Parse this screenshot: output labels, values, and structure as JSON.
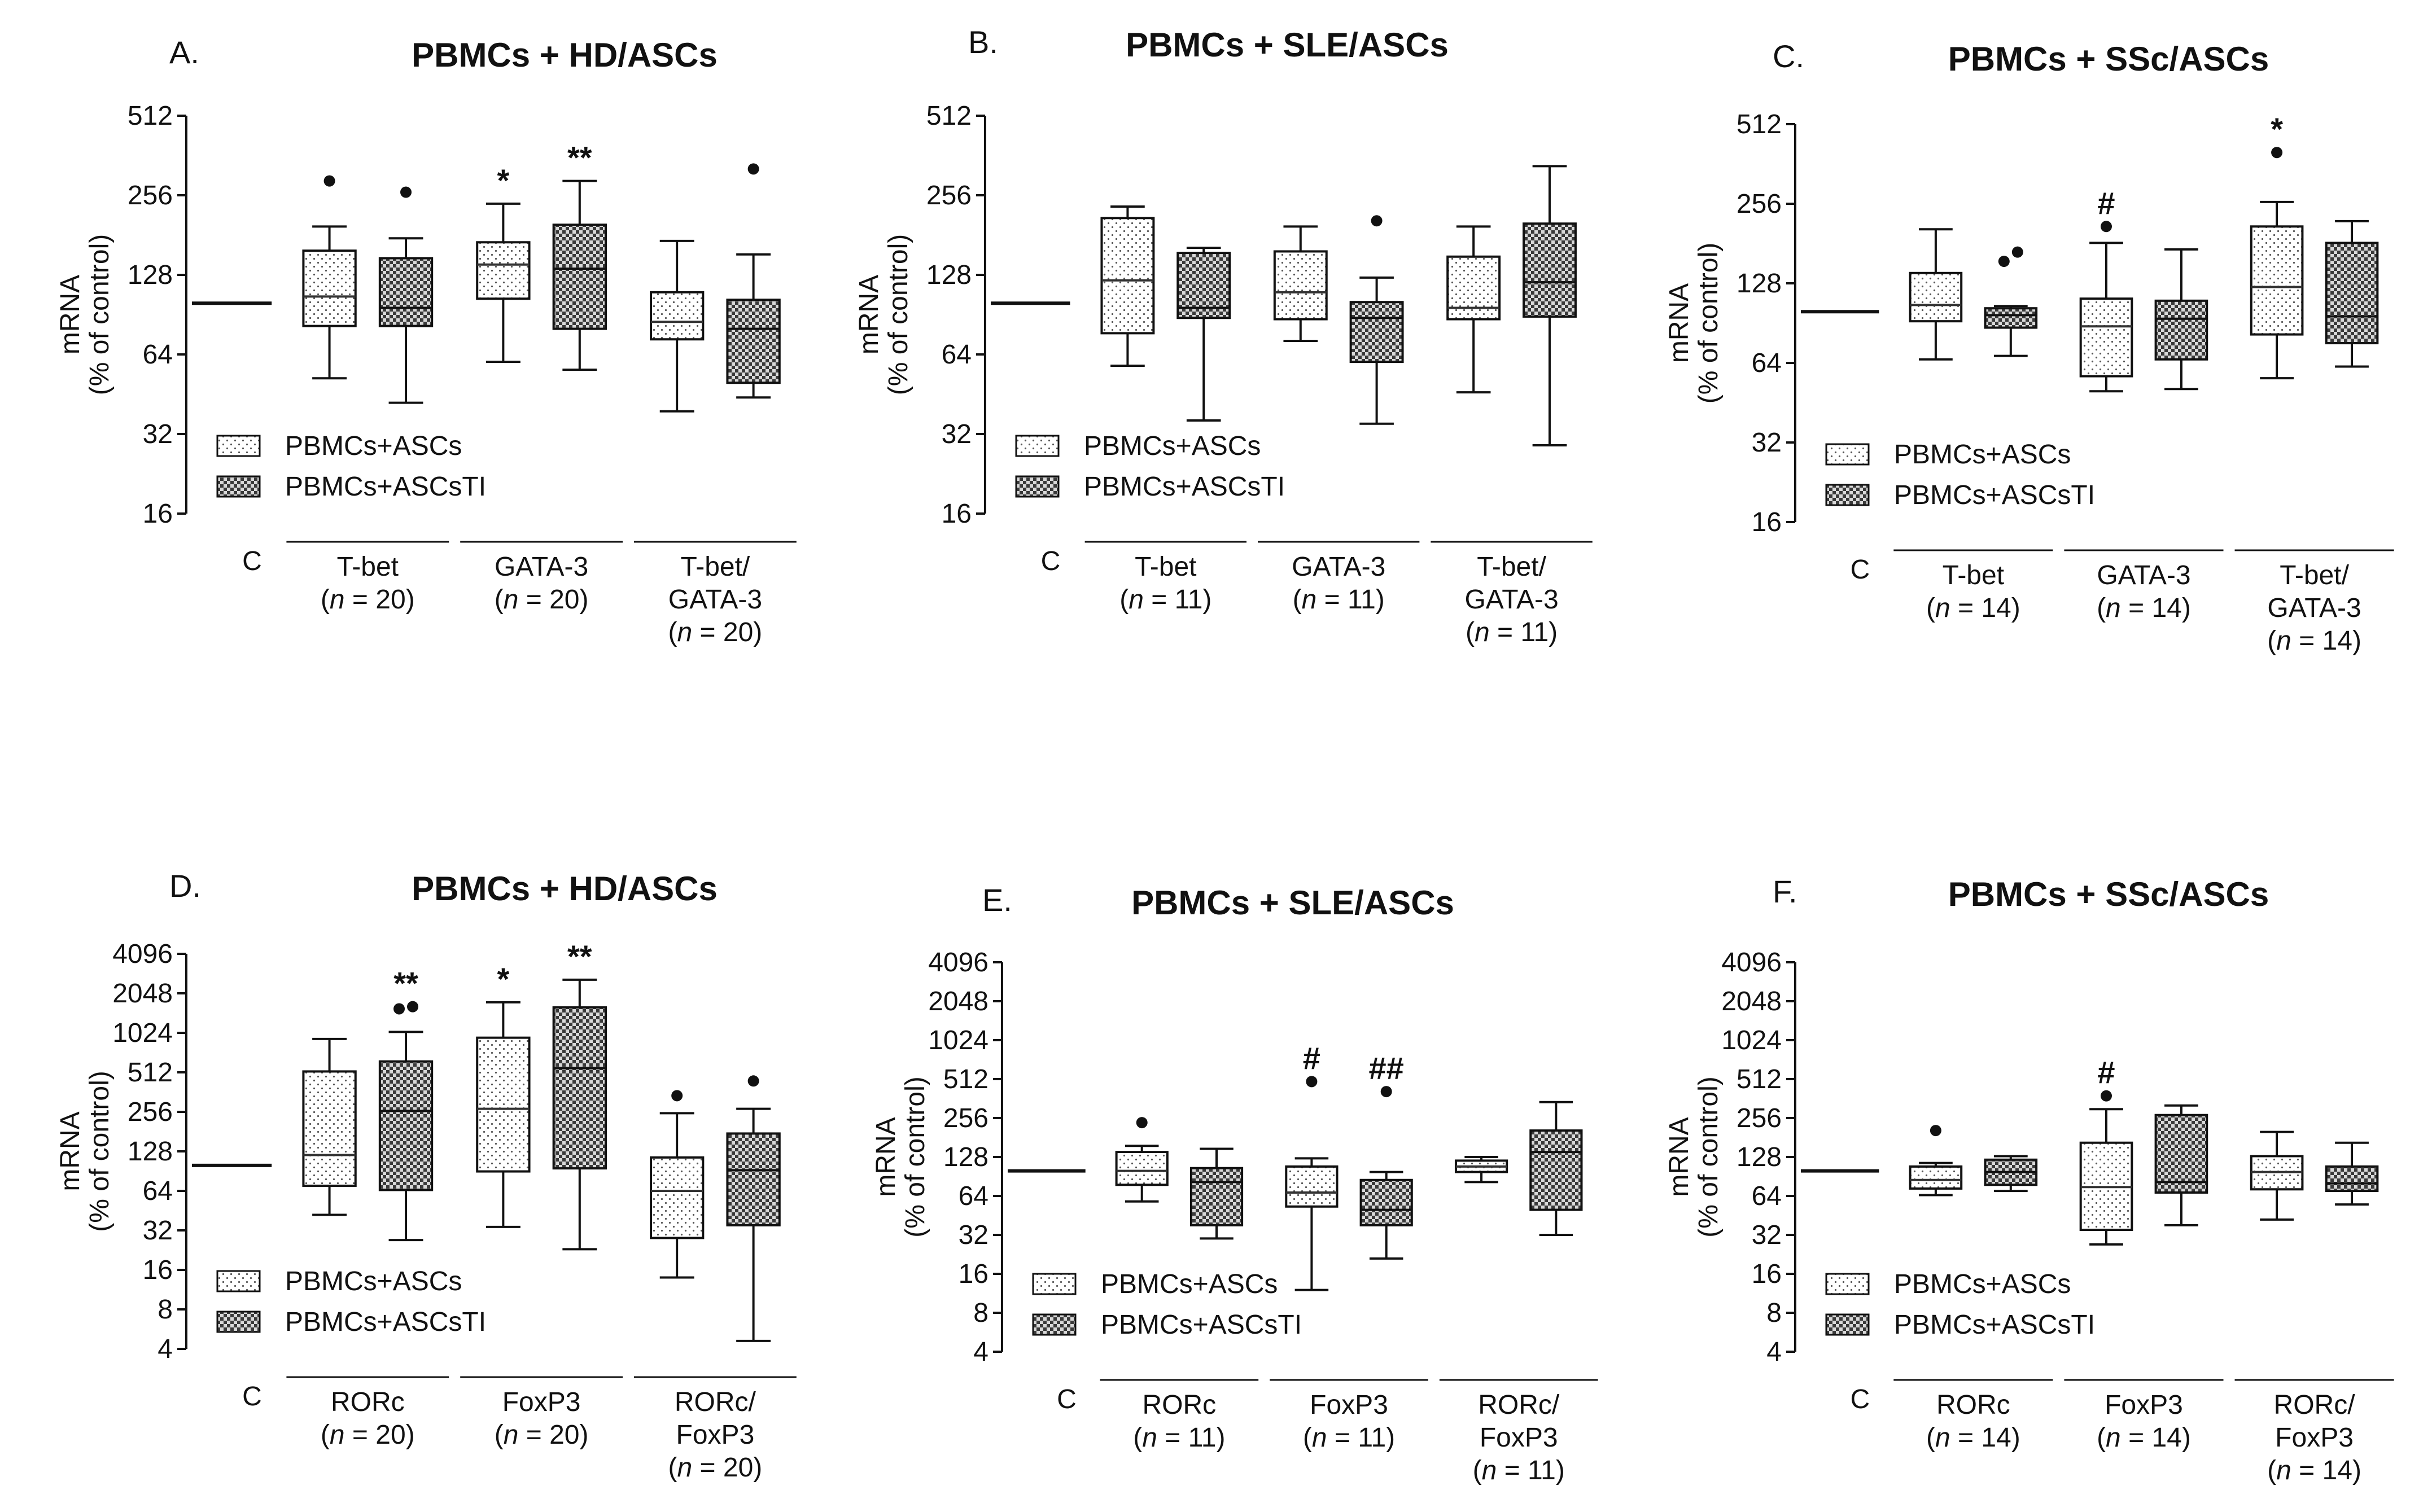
{
  "chart_data": [
    {
      "type": "box",
      "panel_label": "A.",
      "title": "PBMCs + HD/ASCs",
      "ylabel": [
        "mRNA",
        "(% of control)"
      ],
      "yscale": "log2",
      "ylim": [
        16,
        512
      ],
      "yticks": [
        "16",
        "32",
        "64",
        "128",
        "256",
        "512"
      ],
      "control": {
        "label": "C",
        "value": 100
      },
      "legend": {
        "position": "bottom-left",
        "entries": [
          "PBMCs+ASCs",
          "PBMCs+ASCsTI"
        ]
      },
      "groups": [
        {
          "label": [
            "T-bet",
            "(n = 20)"
          ]
        },
        {
          "label": [
            "GATA-3",
            "(n = 20)"
          ]
        },
        {
          "label": [
            "T-bet/",
            "GATA-3",
            "(n = 20)"
          ]
        }
      ],
      "boxes": [
        {
          "group": 0,
          "series": "PBMCs+ASCs",
          "whisker_low": 52,
          "q1": 82,
          "median": 106,
          "q3": 158,
          "whisker_high": 195,
          "outliers": [
            290
          ],
          "annotation": ""
        },
        {
          "group": 0,
          "series": "PBMCs+ASCsTI",
          "whisker_low": 42,
          "q1": 82,
          "median": 96,
          "q3": 148,
          "whisker_high": 176,
          "outliers": [
            263
          ],
          "annotation": ""
        },
        {
          "group": 1,
          "series": "PBMCs+ASCs",
          "whisker_low": 60,
          "q1": 104,
          "median": 140,
          "q3": 170,
          "whisker_high": 238,
          "outliers": [],
          "annotation": "*"
        },
        {
          "group": 1,
          "series": "PBMCs+ASCsTI",
          "whisker_low": 56,
          "q1": 80,
          "median": 135,
          "q3": 198,
          "whisker_high": 290,
          "outliers": [],
          "annotation": "**"
        },
        {
          "group": 2,
          "series": "PBMCs+ASCs",
          "whisker_low": 39,
          "q1": 73,
          "median": 85,
          "q3": 110,
          "whisker_high": 172,
          "outliers": [],
          "annotation": ""
        },
        {
          "group": 2,
          "series": "PBMCs+ASCsTI",
          "whisker_low": 44,
          "q1": 50,
          "median": 80,
          "q3": 103,
          "whisker_high": 153,
          "outliers": [
            322
          ],
          "annotation": ""
        }
      ]
    },
    {
      "type": "box",
      "panel_label": "B.",
      "title": "PBMCs + SLE/ASCs",
      "ylabel": [
        "mRNA",
        "(% of control)"
      ],
      "yscale": "log2",
      "ylim": [
        16,
        512
      ],
      "yticks": [
        "16",
        "32",
        "64",
        "128",
        "256",
        "512"
      ],
      "control": {
        "label": "C",
        "value": 100
      },
      "legend": {
        "position": "bottom-left",
        "entries": [
          "PBMCs+ASCs",
          "PBMCs+ASCsTI"
        ]
      },
      "groups": [
        {
          "label": [
            "T-bet",
            "(n = 11)"
          ]
        },
        {
          "label": [
            "GATA-3",
            "(n = 11)"
          ]
        },
        {
          "label": [
            "T-bet/",
            "GATA-3",
            "(n = 11)"
          ]
        }
      ],
      "boxes": [
        {
          "group": 0,
          "series": "PBMCs+ASCs",
          "whisker_low": 58,
          "q1": 77,
          "median": 122,
          "q3": 210,
          "whisker_high": 232,
          "outliers": [],
          "annotation": ""
        },
        {
          "group": 0,
          "series": "PBMCs+ASCsTI",
          "whisker_low": 36,
          "q1": 88,
          "median": 96,
          "q3": 155,
          "whisker_high": 162,
          "outliers": [],
          "annotation": ""
        },
        {
          "group": 1,
          "series": "PBMCs+ASCs",
          "whisker_low": 72,
          "q1": 87,
          "median": 110,
          "q3": 157,
          "whisker_high": 195,
          "outliers": [],
          "annotation": ""
        },
        {
          "group": 1,
          "series": "PBMCs+ASCsTI",
          "whisker_low": 35,
          "q1": 60,
          "median": 88,
          "q3": 101,
          "whisker_high": 125,
          "outliers": [
            205
          ],
          "annotation": ""
        },
        {
          "group": 2,
          "series": "PBMCs+ASCs",
          "whisker_low": 46,
          "q1": 87,
          "median": 96,
          "q3": 150,
          "whisker_high": 195,
          "outliers": [],
          "annotation": ""
        },
        {
          "group": 2,
          "series": "PBMCs+ASCsTI",
          "whisker_low": 29,
          "q1": 89,
          "median": 120,
          "q3": 200,
          "whisker_high": 330,
          "outliers": [],
          "annotation": ""
        }
      ]
    },
    {
      "type": "box",
      "panel_label": "C.",
      "title": "PBMCs + SSc/ASCs",
      "ylabel": [
        "mRNA",
        "(% of control)"
      ],
      "yscale": "log2",
      "ylim": [
        16,
        512
      ],
      "yticks": [
        "16",
        "32",
        "64",
        "128",
        "256",
        "512"
      ],
      "control": {
        "label": "C",
        "value": 100
      },
      "legend": {
        "position": "bottom-left",
        "entries": [
          "PBMCs+ASCs",
          "PBMCs+ASCsTI"
        ]
      },
      "groups": [
        {
          "label": [
            "T-bet",
            "(n = 14)"
          ]
        },
        {
          "label": [
            "GATA-3",
            "(n = 14)"
          ]
        },
        {
          "label": [
            "T-bet/",
            "GATA-3",
            "(n = 14)"
          ]
        }
      ],
      "boxes": [
        {
          "group": 0,
          "series": "PBMCs+ASCs",
          "whisker_low": 66,
          "q1": 92,
          "median": 106,
          "q3": 140,
          "whisker_high": 205,
          "outliers": [],
          "annotation": ""
        },
        {
          "group": 0,
          "series": "PBMCs+ASCsTI",
          "whisker_low": 68,
          "q1": 87,
          "median": 97,
          "q3": 103,
          "whisker_high": 105,
          "outliers": [
            155,
            168
          ],
          "annotation": ""
        },
        {
          "group": 1,
          "series": "PBMCs+ASCs",
          "whisker_low": 50,
          "q1": 57,
          "median": 88,
          "q3": 112,
          "whisker_high": 182,
          "outliers": [
            210
          ],
          "annotation": "#"
        },
        {
          "group": 1,
          "series": "PBMCs+ASCsTI",
          "whisker_low": 51,
          "q1": 66,
          "median": 94,
          "q3": 110,
          "whisker_high": 172,
          "outliers": [],
          "annotation": ""
        },
        {
          "group": 2,
          "series": "PBMCs+ASCs",
          "whisker_low": 56,
          "q1": 82,
          "median": 124,
          "q3": 210,
          "whisker_high": 260,
          "outliers": [
            400
          ],
          "annotation": "*"
        },
        {
          "group": 2,
          "series": "PBMCs+ASCsTI",
          "whisker_low": 62,
          "q1": 76,
          "median": 96,
          "q3": 182,
          "whisker_high": 220,
          "outliers": [],
          "annotation": ""
        }
      ]
    },
    {
      "type": "box",
      "panel_label": "D.",
      "title": "PBMCs + HD/ASCs",
      "ylabel": [
        "mRNA",
        "(% of control)"
      ],
      "yscale": "log2",
      "ylim": [
        4,
        4096
      ],
      "yticks": [
        "4",
        "8",
        "16",
        "32",
        "64",
        "128",
        "256",
        "512",
        "1024",
        "2048",
        "4096"
      ],
      "control": {
        "label": "C",
        "value": 100
      },
      "legend": {
        "position": "bottom-left",
        "entries": [
          "PBMCs+ASCs",
          "PBMCs+ASCsTI"
        ]
      },
      "groups": [
        {
          "label": [
            "RORc",
            "(n = 20)"
          ]
        },
        {
          "label": [
            "FoxP3",
            "(n = 20)"
          ]
        },
        {
          "label": [
            "RORc/",
            "FoxP3",
            "(n = 20)"
          ]
        }
      ],
      "boxes": [
        {
          "group": 0,
          "series": "PBMCs+ASCs",
          "whisker_low": 42,
          "q1": 70,
          "median": 120,
          "q3": 520,
          "whisker_high": 920,
          "outliers": [],
          "annotation": ""
        },
        {
          "group": 0,
          "series": "PBMCs+ASCsTI",
          "whisker_low": 27,
          "q1": 65,
          "median": 260,
          "q3": 620,
          "whisker_high": 1040,
          "outliers": [
            1560,
            1620
          ],
          "annotation": "**"
        },
        {
          "group": 1,
          "series": "PBMCs+ASCs",
          "whisker_low": 34,
          "q1": 90,
          "median": 270,
          "q3": 940,
          "whisker_high": 1750,
          "outliers": [],
          "annotation": "*"
        },
        {
          "group": 1,
          "series": "PBMCs+ASCsTI",
          "whisker_low": 23,
          "q1": 95,
          "median": 550,
          "q3": 1600,
          "whisker_high": 2600,
          "outliers": [],
          "annotation": "**"
        },
        {
          "group": 2,
          "series": "PBMCs+ASCs",
          "whisker_low": 14,
          "q1": 28,
          "median": 64,
          "q3": 115,
          "whisker_high": 250,
          "outliers": [
            340
          ],
          "annotation": ""
        },
        {
          "group": 2,
          "series": "PBMCs+ASCsTI",
          "whisker_low": 4.6,
          "q1": 35,
          "median": 92,
          "q3": 175,
          "whisker_high": 270,
          "outliers": [
            440
          ],
          "annotation": ""
        }
      ]
    },
    {
      "type": "box",
      "panel_label": "E.",
      "title": "PBMCs + SLE/ASCs",
      "ylabel": [
        "mRNA",
        "(% of control)"
      ],
      "yscale": "log2",
      "ylim": [
        4,
        4096
      ],
      "yticks": [
        "4",
        "8",
        "16",
        "32",
        "64",
        "128",
        "256",
        "512",
        "1024",
        "2048",
        "4096"
      ],
      "control": {
        "label": "C",
        "value": 100
      },
      "legend": {
        "position": "bottom-left",
        "entries": [
          "PBMCs+ASCs",
          "PBMCs+ASCsTI"
        ]
      },
      "groups": [
        {
          "label": [
            "RORc",
            "(n = 11)"
          ]
        },
        {
          "label": [
            "FoxP3",
            "(n = 11)"
          ]
        },
        {
          "label": [
            "RORc/",
            "FoxP3",
            "(n = 11)"
          ]
        }
      ],
      "boxes": [
        {
          "group": 0,
          "series": "PBMCs+ASCs",
          "whisker_low": 58,
          "q1": 78,
          "median": 100,
          "q3": 140,
          "whisker_high": 156,
          "outliers": [
            236
          ],
          "annotation": ""
        },
        {
          "group": 0,
          "series": "PBMCs+ASCsTI",
          "whisker_low": 30,
          "q1": 38,
          "median": 82,
          "q3": 105,
          "whisker_high": 148,
          "outliers": [],
          "annotation": ""
        },
        {
          "group": 1,
          "series": "PBMCs+ASCs",
          "whisker_low": 12,
          "q1": 53,
          "median": 68,
          "q3": 108,
          "whisker_high": 125,
          "outliers": [
            490
          ],
          "annotation": "#"
        },
        {
          "group": 1,
          "series": "PBMCs+ASCsTI",
          "whisker_low": 21,
          "q1": 38,
          "median": 50,
          "q3": 85,
          "whisker_high": 98,
          "outliers": [
            410
          ],
          "annotation": "##"
        },
        {
          "group": 2,
          "series": "PBMCs+ASCs",
          "whisker_low": 82,
          "q1": 98,
          "median": 108,
          "q3": 120,
          "whisker_high": 128,
          "outliers": [],
          "annotation": ""
        },
        {
          "group": 2,
          "series": "PBMCs+ASCsTI",
          "whisker_low": 32,
          "q1": 50,
          "median": 140,
          "q3": 205,
          "whisker_high": 340,
          "outliers": [],
          "annotation": ""
        }
      ]
    },
    {
      "type": "box",
      "panel_label": "F.",
      "title": "PBMCs + SSc/ASCs",
      "ylabel": [
        "mRNA",
        "(% of control)"
      ],
      "yscale": "log2",
      "ylim": [
        4,
        4096
      ],
      "yticks": [
        "4",
        "8",
        "16",
        "32",
        "64",
        "128",
        "256",
        "512",
        "1024",
        "2048",
        "4096"
      ],
      "control": {
        "label": "C",
        "value": 100
      },
      "legend": {
        "position": "bottom-left",
        "entries": [
          "PBMCs+ASCs",
          "PBMCs+ASCsTI"
        ]
      },
      "groups": [
        {
          "label": [
            "RORc",
            "(n = 14)"
          ]
        },
        {
          "label": [
            "FoxP3",
            "(n = 14)"
          ]
        },
        {
          "label": [
            "RORc/",
            "FoxP3",
            "(n = 14)"
          ]
        }
      ],
      "boxes": [
        {
          "group": 0,
          "series": "PBMCs+ASCs",
          "whisker_low": 65,
          "q1": 73,
          "median": 85,
          "q3": 108,
          "whisker_high": 115,
          "outliers": [
            205
          ],
          "annotation": ""
        },
        {
          "group": 0,
          "series": "PBMCs+ASCsTI",
          "whisker_low": 70,
          "q1": 78,
          "median": 98,
          "q3": 122,
          "whisker_high": 130,
          "outliers": [],
          "annotation": ""
        },
        {
          "group": 1,
          "series": "PBMCs+ASCs",
          "whisker_low": 27,
          "q1": 35,
          "median": 75,
          "q3": 165,
          "whisker_high": 300,
          "outliers": [
            380
          ],
          "annotation": "#"
        },
        {
          "group": 1,
          "series": "PBMCs+ASCsTI",
          "whisker_low": 38,
          "q1": 68,
          "median": 82,
          "q3": 270,
          "whisker_high": 320,
          "outliers": [],
          "annotation": ""
        },
        {
          "group": 2,
          "series": "PBMCs+ASCs",
          "whisker_low": 42,
          "q1": 72,
          "median": 98,
          "q3": 130,
          "whisker_high": 200,
          "outliers": [],
          "annotation": ""
        },
        {
          "group": 2,
          "series": "PBMCs+ASCsTI",
          "whisker_low": 55,
          "q1": 70,
          "median": 80,
          "q3": 108,
          "whisker_high": 165,
          "outliers": [],
          "annotation": ""
        }
      ]
    }
  ]
}
